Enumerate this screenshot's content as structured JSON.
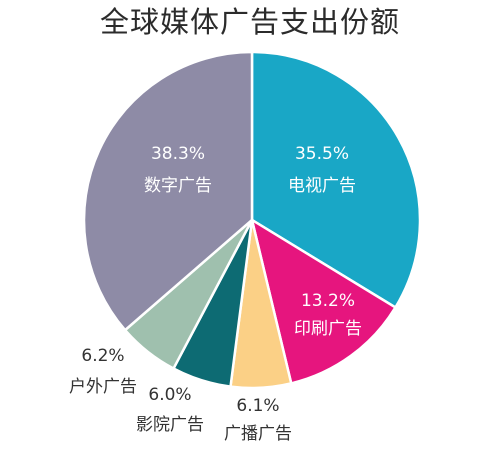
{
  "chart_data": {
    "type": "pie",
    "title": "全球媒体广告支出份额",
    "unit": "%",
    "slices": [
      {
        "label": "电视广告",
        "value": 35.5,
        "value_text": "35.5%",
        "color": "#19a7c6",
        "label_color": "#ffffff"
      },
      {
        "label": "印刷广告",
        "value": 13.2,
        "value_text": "13.2%",
        "color": "#e6157e",
        "label_color": "#ffffff"
      },
      {
        "label": "广播广告",
        "value": 6.1,
        "value_text": "6.1%",
        "color": "#fbd086",
        "label_color": "#333333"
      },
      {
        "label": "影院广告",
        "value": 6.0,
        "value_text": "6.0%",
        "color": "#0d6b73",
        "label_color": "#333333"
      },
      {
        "label": "户外广告",
        "value": 6.2,
        "value_text": "6.2%",
        "color": "#9fc0ae",
        "label_color": "#333333"
      },
      {
        "label": "数字广告",
        "value": 38.3,
        "value_text": "38.3%",
        "color": "#8e8ba6",
        "label_color": "#ffffff"
      }
    ]
  }
}
